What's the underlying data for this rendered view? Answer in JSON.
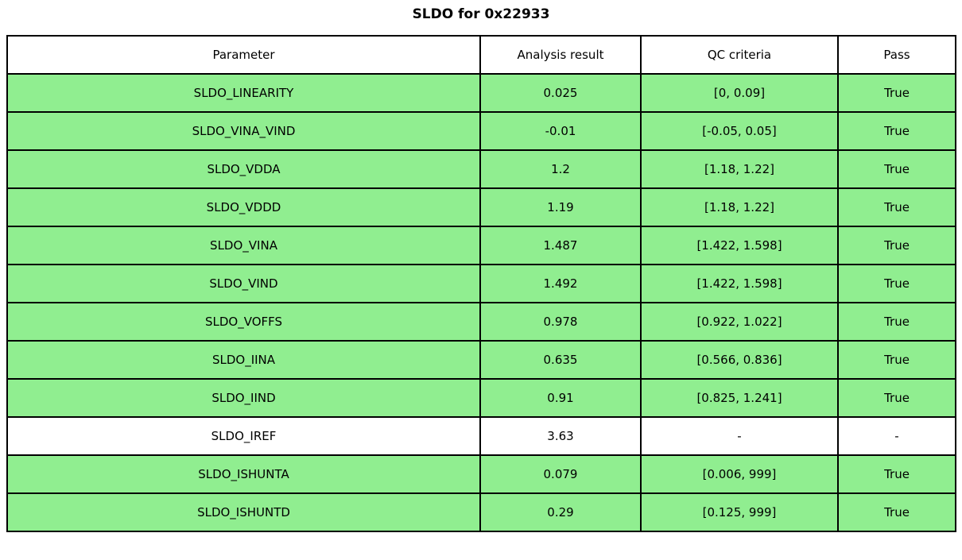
{
  "page": {
    "title": "SLDO for 0x22933"
  },
  "colors": {
    "pass_green": "#90EE90",
    "neutral_white": "#FFFFFF",
    "header_white": "#FFFFFF",
    "border": "#000000",
    "text": "#000000"
  },
  "chart_data": {
    "type": "table",
    "title": "SLDO for 0x22933",
    "columns": [
      "Parameter",
      "Analysis result",
      "QC criteria",
      "Pass"
    ],
    "rows": [
      {
        "parameter": "SLDO_LINEARITY",
        "analysis_result": "0.025",
        "qc_criteria": "[0, 0.09]",
        "pass": "True",
        "highlighted": true
      },
      {
        "parameter": "SLDO_VINA_VIND",
        "analysis_result": "-0.01",
        "qc_criteria": "[-0.05, 0.05]",
        "pass": "True",
        "highlighted": true
      },
      {
        "parameter": "SLDO_VDDA",
        "analysis_result": "1.2",
        "qc_criteria": "[1.18, 1.22]",
        "pass": "True",
        "highlighted": true
      },
      {
        "parameter": "SLDO_VDDD",
        "analysis_result": "1.19",
        "qc_criteria": "[1.18, 1.22]",
        "pass": "True",
        "highlighted": true
      },
      {
        "parameter": "SLDO_VINA",
        "analysis_result": "1.487",
        "qc_criteria": "[1.422, 1.598]",
        "pass": "True",
        "highlighted": true
      },
      {
        "parameter": "SLDO_VIND",
        "analysis_result": "1.492",
        "qc_criteria": "[1.422, 1.598]",
        "pass": "True",
        "highlighted": true
      },
      {
        "parameter": "SLDO_VOFFS",
        "analysis_result": "0.978",
        "qc_criteria": "[0.922, 1.022]",
        "pass": "True",
        "highlighted": true
      },
      {
        "parameter": "SLDO_IINA",
        "analysis_result": "0.635",
        "qc_criteria": "[0.566, 0.836]",
        "pass": "True",
        "highlighted": true
      },
      {
        "parameter": "SLDO_IIND",
        "analysis_result": "0.91",
        "qc_criteria": "[0.825, 1.241]",
        "pass": "True",
        "highlighted": true
      },
      {
        "parameter": "SLDO_IREF",
        "analysis_result": "3.63",
        "qc_criteria": "-",
        "pass": "-",
        "highlighted": false
      },
      {
        "parameter": "SLDO_ISHUNTA",
        "analysis_result": "0.079",
        "qc_criteria": "[0.006, 999]",
        "pass": "True",
        "highlighted": true
      },
      {
        "parameter": "SLDO_ISHUNTD",
        "analysis_result": "0.29",
        "qc_criteria": "[0.125, 999]",
        "pass": "True",
        "highlighted": true
      }
    ]
  }
}
